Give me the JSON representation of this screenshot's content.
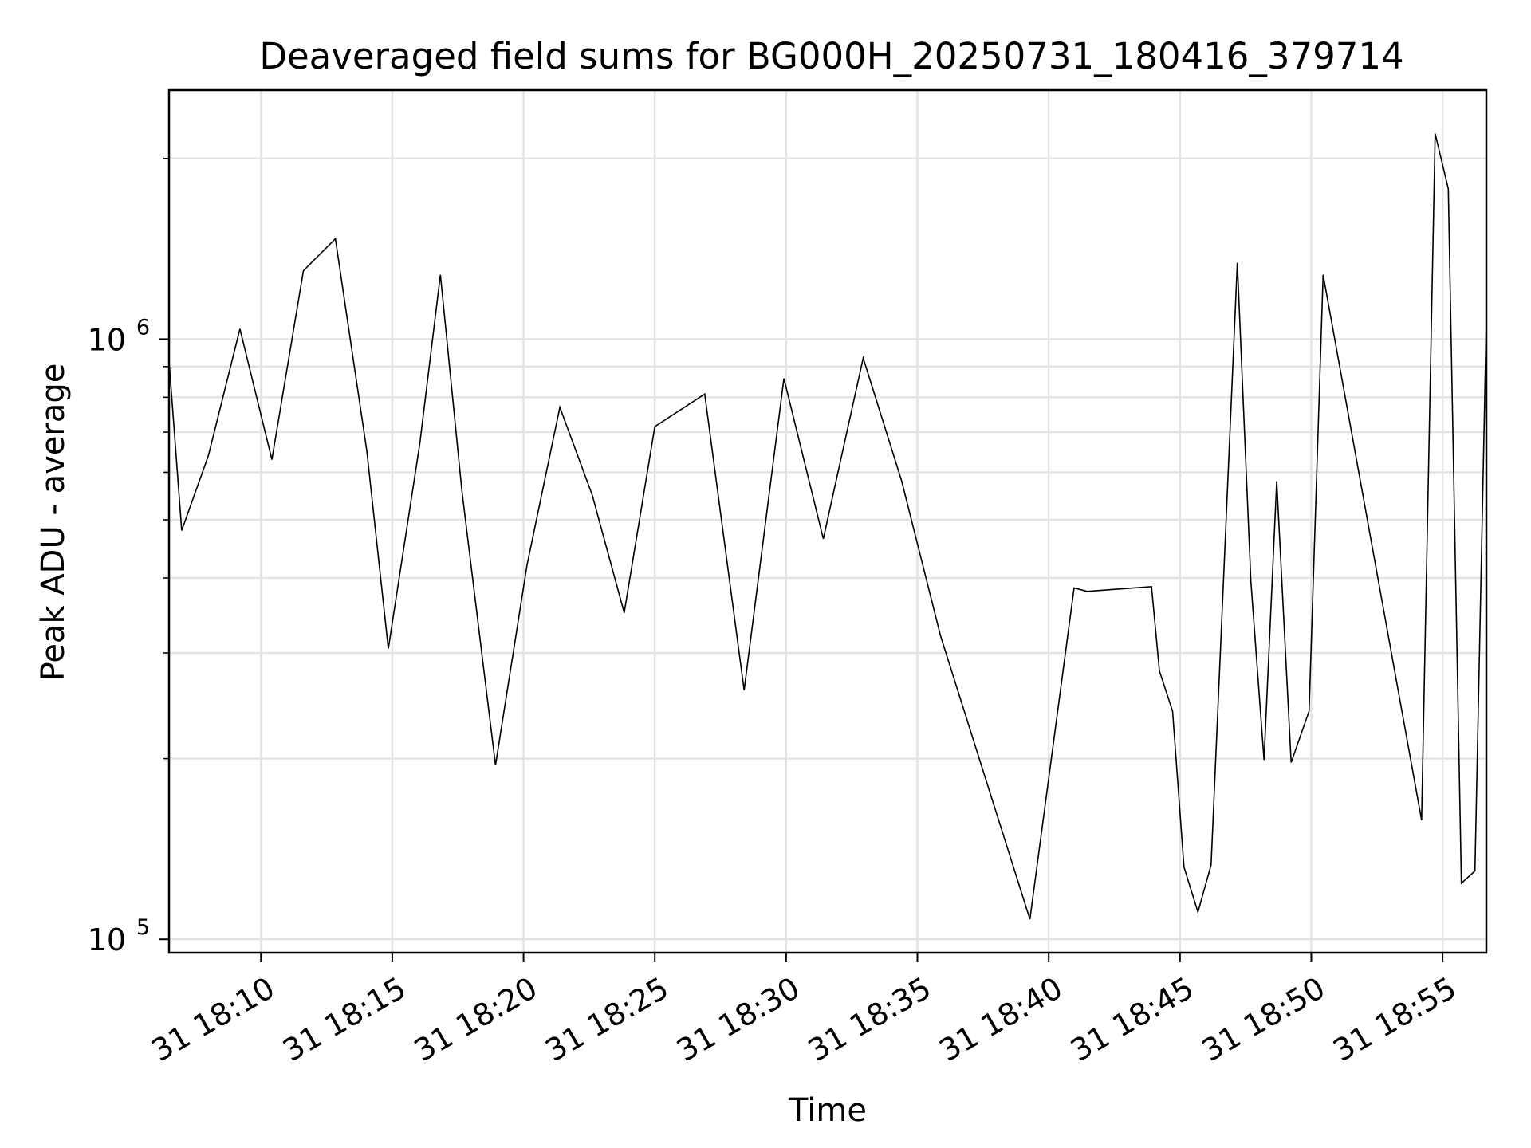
{
  "chart_data": {
    "type": "line",
    "title": "Deaveraged field sums for BG000H_20250731_180416_379714",
    "xlabel": "Time",
    "ylabel": "Peak ADU - average",
    "yscale": "log",
    "ylim": [
      95000,
      2600000
    ],
    "xlim": [
      "2025-07-31 18:06:30",
      "2025-07-31 18:56:40"
    ],
    "grid": true,
    "x_ticks": [
      {
        "t": "2025-07-31 18:10:00",
        "label": "31 18:10"
      },
      {
        "t": "2025-07-31 18:15:00",
        "label": "31 18:15"
      },
      {
        "t": "2025-07-31 18:20:00",
        "label": "31 18:20"
      },
      {
        "t": "2025-07-31 18:25:00",
        "label": "31 18:25"
      },
      {
        "t": "2025-07-31 18:30:00",
        "label": "31 18:30"
      },
      {
        "t": "2025-07-31 18:35:00",
        "label": "31 18:35"
      },
      {
        "t": "2025-07-31 18:40:00",
        "label": "31 18:40"
      },
      {
        "t": "2025-07-31 18:45:00",
        "label": "31 18:45"
      },
      {
        "t": "2025-07-31 18:50:00",
        "label": "31 18:50"
      },
      {
        "t": "2025-07-31 18:55:00",
        "label": "31 18:55"
      }
    ],
    "y_major_ticks": [
      {
        "value": 100000,
        "base": "10",
        "exp": "5"
      },
      {
        "value": 1000000,
        "base": "10",
        "exp": "6"
      }
    ],
    "y_minor_ticks": [
      200000,
      300000,
      400000,
      500000,
      600000,
      700000,
      800000,
      900000,
      2000000
    ],
    "series": [
      {
        "color": "#000000",
        "x": [
          "2025-07-31 18:06:30",
          "2025-07-31 18:06:59",
          "2025-07-31 18:08:00",
          "2025-07-31 18:09:12",
          "2025-07-31 18:10:25",
          "2025-07-31 18:11:37",
          "2025-07-31 18:12:50",
          "2025-07-31 18:14:02",
          "2025-07-31 18:14:51",
          "2025-07-31 18:16:03",
          "2025-07-31 18:16:50",
          "2025-07-31 18:17:39",
          "2025-07-31 18:18:56",
          "2025-07-31 18:20:08",
          "2025-07-31 18:21:23",
          "2025-07-31 18:22:37",
          "2025-07-31 18:23:50",
          "2025-07-31 18:25:00",
          "2025-07-31 18:26:54",
          "2025-07-31 18:28:24",
          "2025-07-31 18:29:55",
          "2025-07-31 18:31:25",
          "2025-07-31 18:32:56",
          "2025-07-31 18:34:24",
          "2025-07-31 18:35:53",
          "2025-07-31 18:39:17",
          "2025-07-31 18:40:58",
          "2025-07-31 18:41:28",
          "2025-07-31 18:43:55",
          "2025-07-31 18:44:13",
          "2025-07-31 18:44:43",
          "2025-07-31 18:45:09",
          "2025-07-31 18:45:41",
          "2025-07-31 18:46:11",
          "2025-07-31 18:47:11",
          "2025-07-31 18:47:42",
          "2025-07-31 18:48:12",
          "2025-07-31 18:48:41",
          "2025-07-31 18:49:14",
          "2025-07-31 18:49:55",
          "2025-07-31 18:50:27",
          "2025-07-31 18:54:12",
          "2025-07-31 18:54:43",
          "2025-07-31 18:55:13",
          "2025-07-31 18:55:43",
          "2025-07-31 18:56:14",
          "2025-07-31 18:56:40"
        ],
        "y": [
          920000,
          480000,
          640000,
          1040000,
          630000,
          1300000,
          1470000,
          650000,
          305000,
          670000,
          1280000,
          560000,
          195000,
          420000,
          770000,
          550000,
          350000,
          715000,
          810000,
          260000,
          860000,
          465000,
          930000,
          580000,
          320000,
          108000,
          385000,
          380000,
          387000,
          280000,
          240000,
          132000,
          111000,
          133000,
          1340000,
          395000,
          199000,
          580000,
          197000,
          240000,
          1280000,
          158000,
          2200000,
          1780000,
          124000,
          130000,
          1080000
        ]
      }
    ]
  }
}
